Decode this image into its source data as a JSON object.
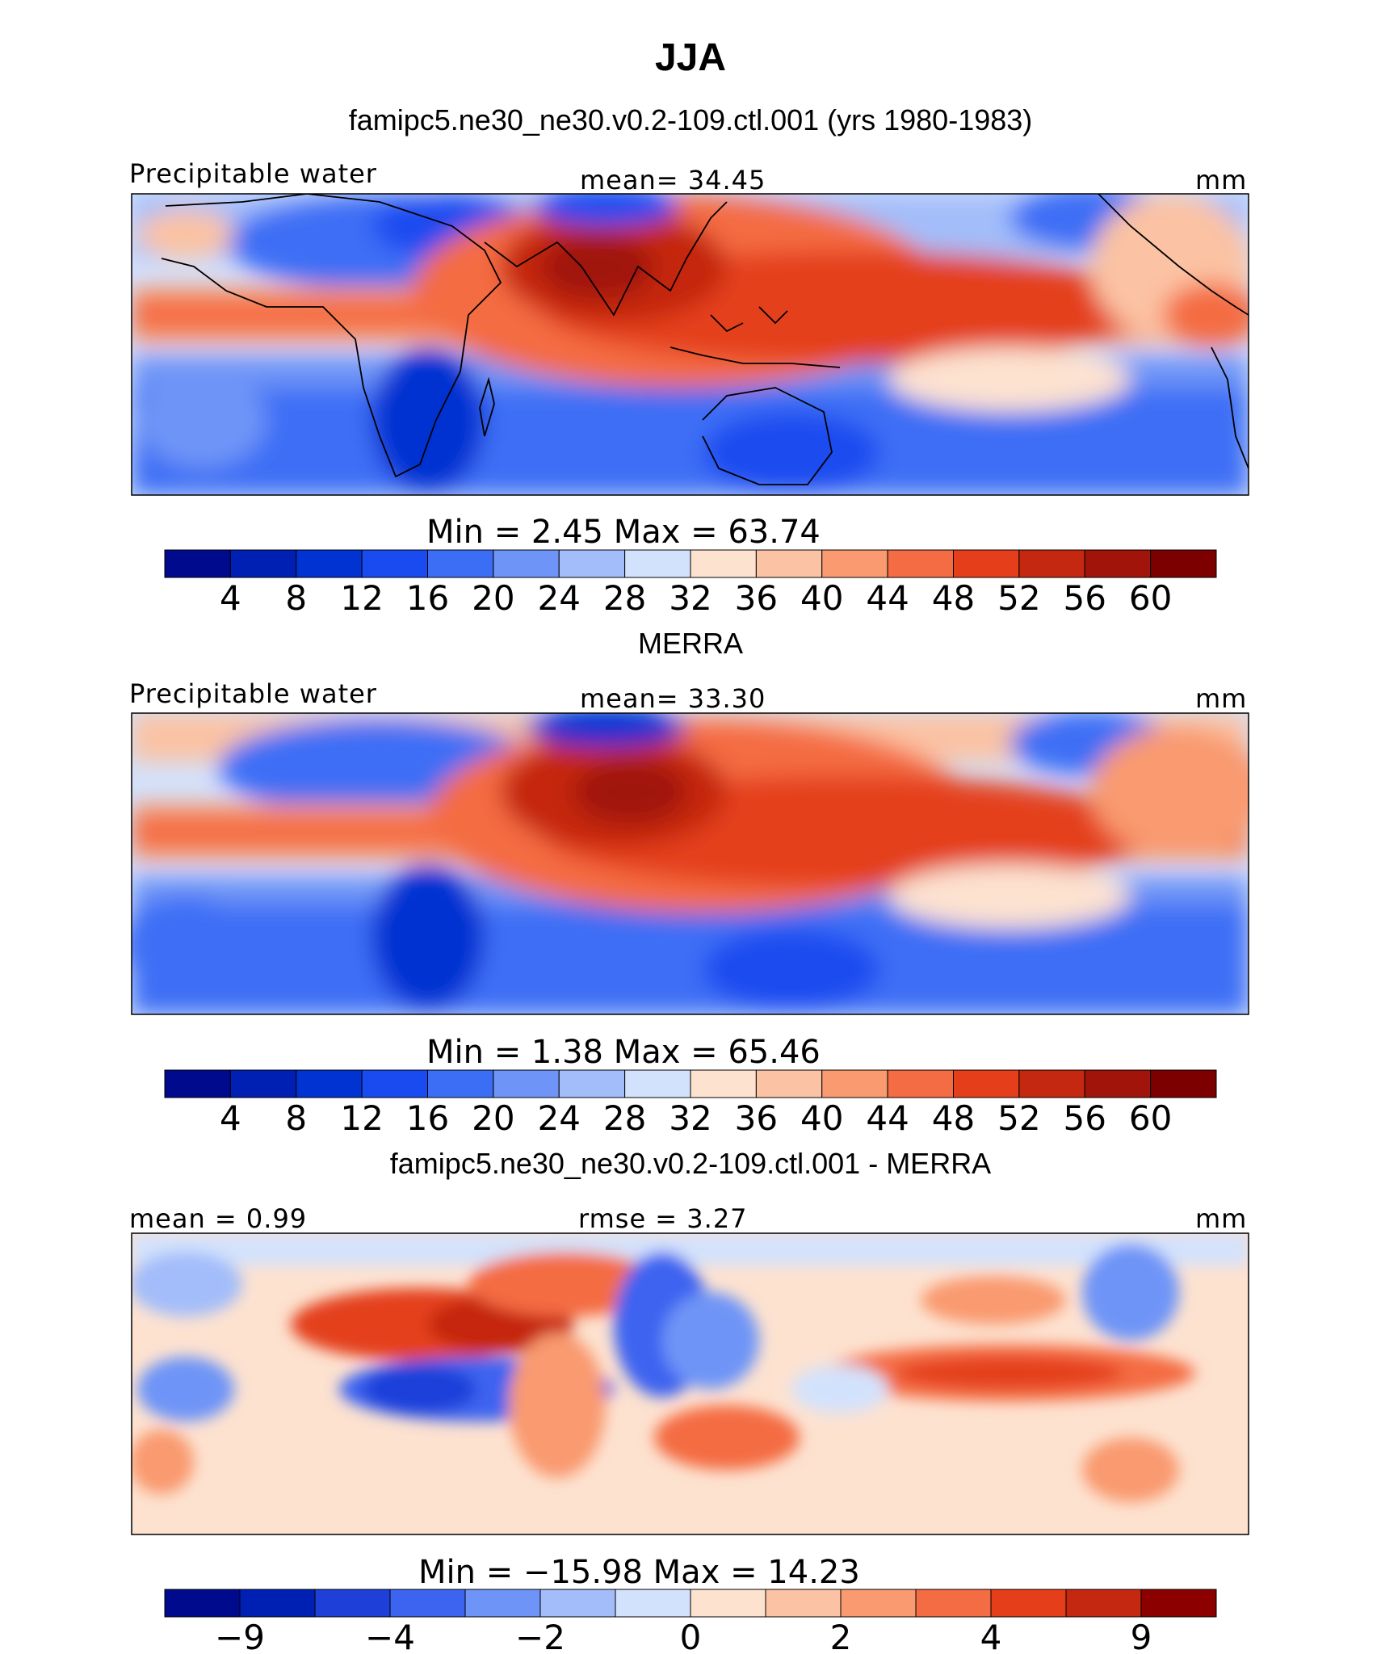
{
  "figure": {
    "title": "JJA",
    "colors": {
      "precip_scale": [
        "#000a8c",
        "#0020b4",
        "#0033d2",
        "#1a4bf0",
        "#3c6ef5",
        "#6e94f7",
        "#a3bdfa",
        "#d3e2fc",
        "#fde2d0",
        "#fbc2a3",
        "#f99a70",
        "#f46c43",
        "#e43f1a",
        "#c52810",
        "#a0140a",
        "#7d0000"
      ],
      "diff_scale": [
        "#000a8c",
        "#0020b4",
        "#1f3fd9",
        "#3c64f0",
        "#6e94f7",
        "#a3bdfa",
        "#d3e2fc",
        "#fde2d0",
        "#fbc2a3",
        "#f99a70",
        "#f46c43",
        "#e43f1a",
        "#c52810",
        "#8c0000"
      ],
      "coast": "#000000"
    }
  },
  "chart_data": [
    {
      "type": "heatmap",
      "title": "famipc5.ne30_ne30.v0.2-109.ctl.001 (yrs 1980-1983)",
      "left_label": "Precipitable water",
      "center_label": "mean=  34.45",
      "units": "mm",
      "stats": "Min =    2.45  Max =   63.74",
      "min": 2.45,
      "max": 63.74,
      "mean": 34.45,
      "colorbar_ticks": [
        "4",
        "8",
        "12",
        "16",
        "20",
        "24",
        "28",
        "32",
        "36",
        "40",
        "44",
        "48",
        "52",
        "56",
        "60"
      ]
    },
    {
      "type": "heatmap",
      "title": "MERRA",
      "left_label": "Precipitable water",
      "center_label": "mean=  33.30",
      "units": "mm",
      "stats": "Min =    1.38  Max =   65.46",
      "min": 1.38,
      "max": 65.46,
      "mean": 33.3,
      "colorbar_ticks": [
        "4",
        "8",
        "12",
        "16",
        "20",
        "24",
        "28",
        "32",
        "36",
        "40",
        "44",
        "48",
        "52",
        "56",
        "60"
      ]
    },
    {
      "type": "heatmap",
      "title": "famipc5.ne30_ne30.v0.2-109.ctl.001 - MERRA",
      "left_label": "mean =   0.99",
      "center_label": "rmse =   3.27",
      "units": "mm",
      "stats": "Min = −15.98  Max =  14.23",
      "min": -15.98,
      "max": 14.23,
      "mean": 0.99,
      "rmse": 3.27,
      "colorbar_ticks": [
        "−9",
        "−4",
        "−2",
        "0",
        "2",
        "4",
        "9"
      ]
    }
  ]
}
